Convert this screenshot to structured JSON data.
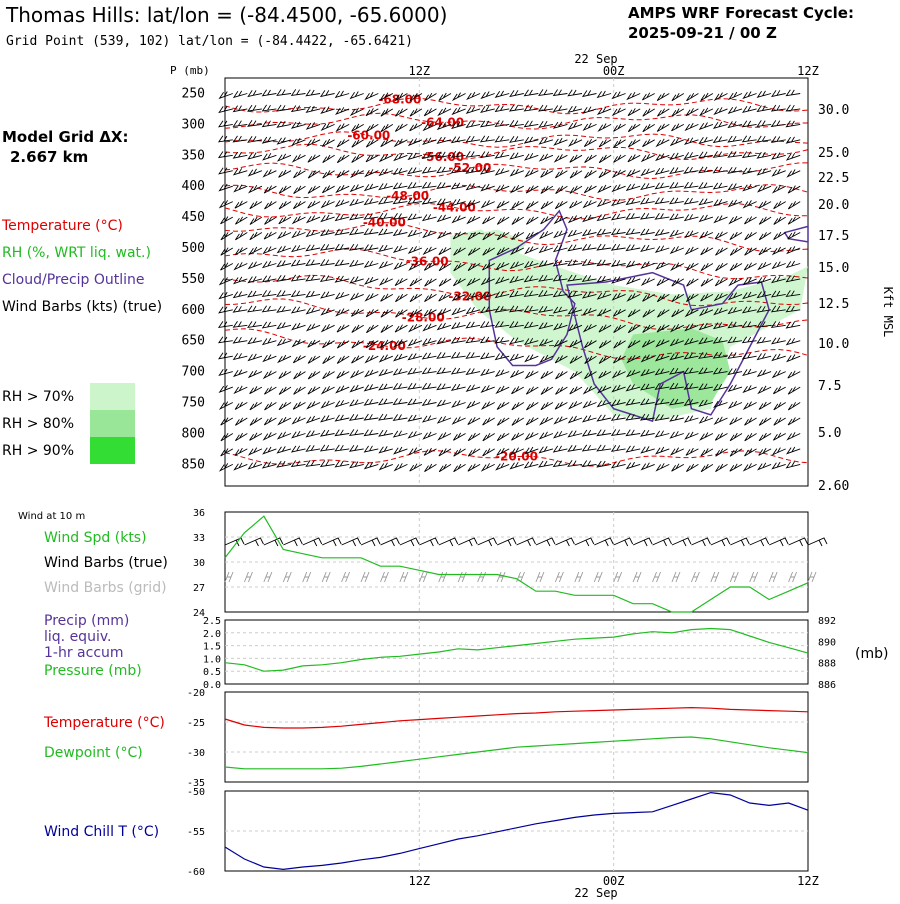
{
  "header": {
    "title": "Thomas Hills:  lat/lon = (-84.4500, -65.6000)",
    "subtitle": "Grid Point (539, 102) lat/lon = (-84.4422, -65.6421)",
    "cycle_label": "AMPS WRF Forecast Cycle:",
    "cycle_value": "2025-09-21 / 00  Z",
    "grid_label": "Model Grid ΔX:",
    "grid_value": "2.667 km"
  },
  "time_axis": {
    "ticks": [
      {
        "pos": 0.0,
        "label": ""
      },
      {
        "pos": 0.5,
        "label": "12Z"
      },
      {
        "pos": 1.0,
        "label": "00Z"
      },
      {
        "pos": 1.5,
        "label": "12Z"
      }
    ],
    "date_label": "22 Sep",
    "range": [
      0,
      1.5
    ]
  },
  "colors": {
    "temperature": "#dd0000",
    "rh": "#22bb22",
    "cloud": "#553399",
    "wind": "#000000",
    "wind_grid": "#999999",
    "pressure": "#22bb22",
    "dewpoint": "#22bb22",
    "windchill": "#000099",
    "rh70": "#ccf5cc",
    "rh80": "#99e699",
    "rh90": "#33dd33"
  },
  "sounding": {
    "ylabel": "P (mb)",
    "y2label": "Kft MSL",
    "pressure_levels": [
      250,
      300,
      350,
      400,
      450,
      500,
      550,
      600,
      650,
      700,
      750,
      800,
      850
    ],
    "kft_labels": [
      "30.0",
      "25.0",
      "22.5",
      "20.0",
      "17.5",
      "15.0",
      "12.5",
      "10.0",
      "7.5",
      "5.0",
      "2.60"
    ],
    "legend": {
      "temperature": "Temperature (°C)",
      "rh": "RH (%, WRT liq. wat.)",
      "cloud": "Cloud/Precip Outline",
      "wind": "Wind Barbs (kts) (true)",
      "rh_gt_70": "RH > 70%",
      "rh_gt_80": "RH > 80%",
      "rh_gt_90": "RH > 90%"
    },
    "isotherm_labels": [
      "-68.00",
      "-64.00",
      "-60.00",
      "-56.00",
      "-52.00",
      "-48.00",
      "-44.00",
      "-40.00",
      "-36.00",
      "-32.00",
      "-28.00",
      "-24.00",
      "-20.00"
    ]
  },
  "chart_data": [
    {
      "type": "line",
      "panel": "wind",
      "title": "Wind at 10 m",
      "series_label": "Wind Spd (kts)",
      "barb_label": "Wind Barbs (true)",
      "barb_grid_label": "Wind Barbs (grid)",
      "ylim": [
        24,
        36
      ],
      "yticks": [
        24,
        27,
        30,
        33,
        36
      ],
      "x": [
        0.0,
        0.05,
        0.1,
        0.15,
        0.2,
        0.25,
        0.3,
        0.35,
        0.4,
        0.45,
        0.5,
        0.55,
        0.6,
        0.65,
        0.7,
        0.75,
        0.8,
        0.85,
        0.9,
        0.95,
        1.0,
        1.05,
        1.1,
        1.15,
        1.2,
        1.25,
        1.3,
        1.35,
        1.4,
        1.45,
        1.5
      ],
      "values": [
        30.5,
        33.5,
        35.5,
        31.5,
        31,
        30.5,
        30.5,
        30.5,
        29.5,
        29.5,
        29,
        28.5,
        28.5,
        28.5,
        28.5,
        28,
        26.5,
        26.5,
        26,
        26,
        26,
        25,
        25,
        24,
        24,
        25.5,
        27,
        27,
        25.5,
        26.5,
        27.5
      ]
    },
    {
      "type": "line",
      "panel": "precip_pressure",
      "title": "",
      "precip_label": "Precip (mm)",
      "precip_label2": "liq. equiv.",
      "precip_label3": "1-hr accum",
      "pressure_label": "Pressure (mb)",
      "y2label": "(mb)",
      "ylim": [
        0.0,
        2.5
      ],
      "yticks": [
        "0.0",
        "0.5",
        "1.0",
        "1.5",
        "2.0",
        "2.5"
      ],
      "y2lim": [
        886,
        892
      ],
      "y2ticks": [
        886,
        888,
        890,
        892
      ],
      "x": [
        0.0,
        0.05,
        0.1,
        0.15,
        0.2,
        0.25,
        0.3,
        0.35,
        0.4,
        0.45,
        0.5,
        0.55,
        0.6,
        0.65,
        0.7,
        0.75,
        0.8,
        0.85,
        0.9,
        0.95,
        1.0,
        1.05,
        1.1,
        1.15,
        1.2,
        1.25,
        1.3,
        1.35,
        1.4,
        1.45,
        1.5
      ],
      "pressure": [
        888.0,
        887.8,
        887.2,
        887.3,
        887.7,
        887.8,
        888.0,
        888.3,
        888.5,
        888.6,
        888.8,
        889.0,
        889.3,
        889.2,
        889.4,
        889.6,
        889.8,
        890.0,
        890.2,
        890.3,
        890.4,
        890.7,
        890.9,
        890.8,
        891.1,
        891.2,
        891.1,
        890.5,
        889.9,
        889.4,
        888.9
      ]
    },
    {
      "type": "line",
      "panel": "temperature",
      "title": "",
      "series": [
        {
          "name": "Temperature (°C)",
          "values": [
            -24.5,
            -25.5,
            -25.9,
            -26.0,
            -26.0,
            -25.9,
            -25.7,
            -25.4,
            -25.1,
            -24.8,
            -24.6,
            -24.4,
            -24.2,
            -24.0,
            -23.8,
            -23.6,
            -23.5,
            -23.3,
            -23.2,
            -23.1,
            -23.0,
            -22.9,
            -22.8,
            -22.7,
            -22.6,
            -22.7,
            -22.9,
            -23.0,
            -23.1,
            -23.2,
            -23.3
          ]
        },
        {
          "name": "Dewpoint (°C)",
          "values": [
            -32.5,
            -32.8,
            -32.8,
            -32.8,
            -32.8,
            -32.8,
            -32.7,
            -32.4,
            -32.0,
            -31.6,
            -31.2,
            -30.8,
            -30.4,
            -30.0,
            -29.6,
            -29.2,
            -29.0,
            -28.8,
            -28.6,
            -28.4,
            -28.2,
            -28.0,
            -27.8,
            -27.6,
            -27.5,
            -27.8,
            -28.3,
            -28.8,
            -29.3,
            -29.7,
            -30.1
          ]
        }
      ],
      "x": [
        0.0,
        0.05,
        0.1,
        0.15,
        0.2,
        0.25,
        0.3,
        0.35,
        0.4,
        0.45,
        0.5,
        0.55,
        0.6,
        0.65,
        0.7,
        0.75,
        0.8,
        0.85,
        0.9,
        0.95,
        1.0,
        1.05,
        1.1,
        1.15,
        1.2,
        1.25,
        1.3,
        1.35,
        1.4,
        1.45,
        1.5
      ],
      "ylim": [
        -35,
        -20
      ],
      "yticks": [
        -35,
        -30,
        -25,
        -20
      ]
    },
    {
      "type": "line",
      "panel": "windchill",
      "title": "",
      "series_label": "Wind Chill T (°C)",
      "ylim": [
        -60,
        -50
      ],
      "yticks": [
        -60,
        -55,
        -50
      ],
      "x": [
        0.0,
        0.05,
        0.1,
        0.15,
        0.2,
        0.25,
        0.3,
        0.35,
        0.4,
        0.45,
        0.5,
        0.55,
        0.6,
        0.65,
        0.7,
        0.75,
        0.8,
        0.85,
        0.9,
        0.95,
        1.0,
        1.05,
        1.1,
        1.15,
        1.2,
        1.25,
        1.3,
        1.35,
        1.4,
        1.45,
        1.5
      ],
      "values": [
        -57.0,
        -58.5,
        -59.5,
        -59.8,
        -59.5,
        -59.3,
        -59.0,
        -58.6,
        -58.3,
        -57.8,
        -57.2,
        -56.6,
        -56.0,
        -55.6,
        -55.1,
        -54.6,
        -54.1,
        -53.7,
        -53.3,
        -53.0,
        -52.8,
        -52.7,
        -52.6,
        -51.8,
        -51.0,
        -50.2,
        -50.5,
        -51.5,
        -51.8,
        -51.5,
        -52.4
      ]
    }
  ]
}
